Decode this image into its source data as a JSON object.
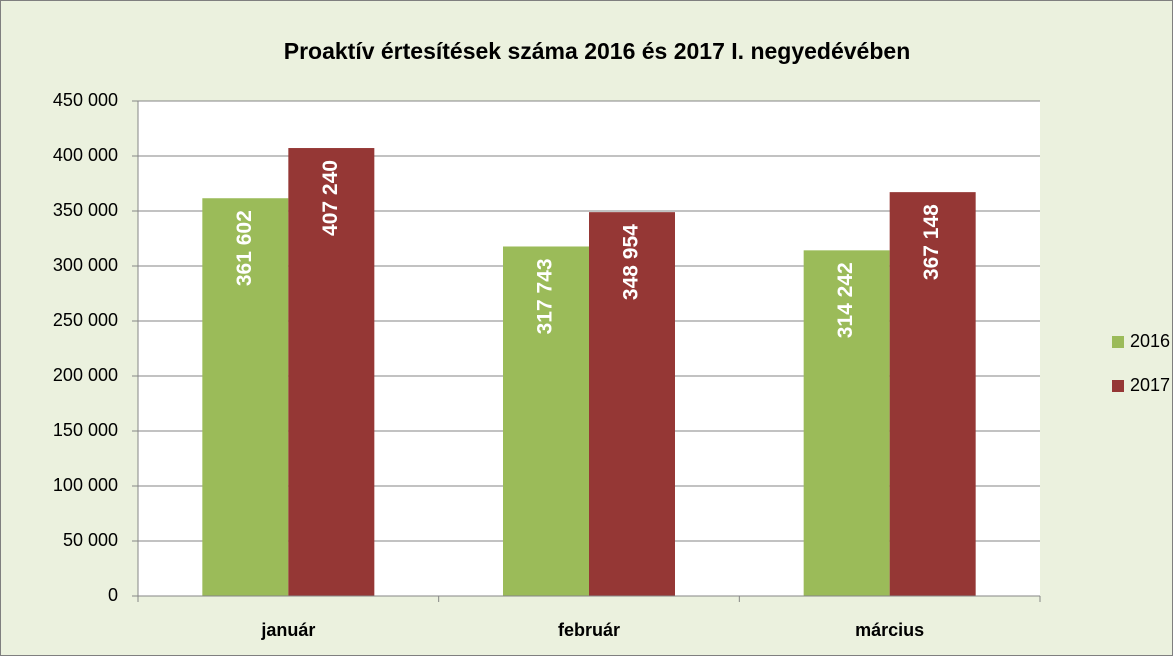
{
  "chart_data": {
    "type": "bar",
    "title": "Proaktív értesítések száma 2016 és 2017 I. negyedévében",
    "categories": [
      "január",
      "február",
      "március"
    ],
    "series": [
      {
        "name": "2016",
        "color": "#9bbb59",
        "values": [
          361602,
          317743,
          314242
        ],
        "value_labels": [
          "361 602",
          "317 743",
          "314 242"
        ]
      },
      {
        "name": "2017",
        "color": "#953735",
        "values": [
          407240,
          348954,
          367148
        ],
        "value_labels": [
          "407 240",
          "348 954",
          "367 148"
        ]
      }
    ],
    "ylim": [
      0,
      450000
    ],
    "yticks": [
      0,
      {
        "value": 50000,
        "label": "50 000"
      },
      {
        "value": 100000,
        "label": "100 000"
      },
      {
        "value": 150000,
        "label": "150 000"
      },
      {
        "value": 200000,
        "label": "200 000"
      },
      {
        "value": 250000,
        "label": "250 000"
      },
      {
        "value": 300000,
        "label": "300 000"
      },
      {
        "value": 350000,
        "label": "350 000"
      },
      {
        "value": 400000,
        "label": "400 000"
      },
      {
        "value": 450000,
        "label": "450 000"
      }
    ],
    "grid": true,
    "legend": "right"
  }
}
